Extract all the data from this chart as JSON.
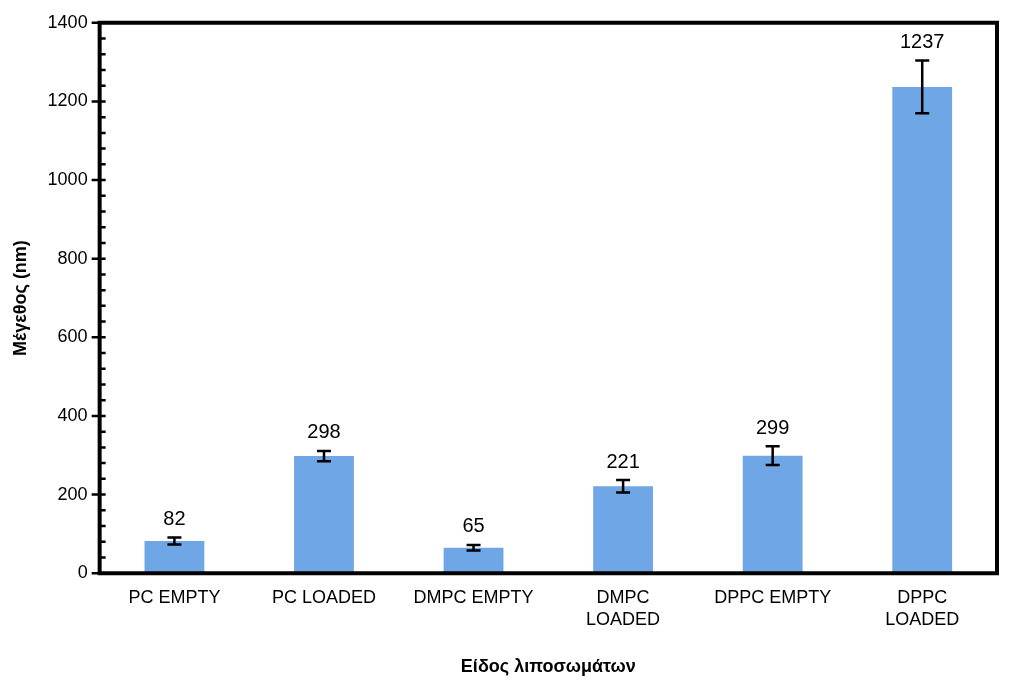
{
  "chart_data": {
    "type": "bar",
    "xlabel": "Είδος λιποσωμάτων",
    "ylabel": "Μέγεθος (nm)",
    "categories": [
      "PC EMPTY",
      "PC LOADED",
      "DMPC EMPTY",
      "DMPC LOADED",
      "DPPC EMPTY",
      "DPPC LOADED"
    ],
    "values": [
      82,
      298,
      65,
      221,
      299,
      1237
    ],
    "errors": [
      9,
      13,
      7,
      16,
      24,
      67
    ],
    "color": "#6fa6e6",
    "ylim": [
      0,
      1400
    ],
    "yticks": [
      0,
      {
        "value": 40,
        "label": null
      },
      {
        "value": 80,
        "label": null
      },
      {
        "value": 120,
        "label": null
      },
      {
        "value": 160,
        "label": null
      },
      200,
      {
        "value": 240,
        "label": null
      },
      {
        "value": 280,
        "label": null
      },
      {
        "value": 320,
        "label": null
      },
      {
        "value": 360,
        "label": null
      },
      400,
      {
        "value": 440,
        "label": null
      },
      {
        "value": 480,
        "label": null
      },
      {
        "value": 520,
        "label": null
      },
      {
        "value": 560,
        "label": null
      },
      600,
      {
        "value": 640,
        "label": null
      },
      {
        "value": 680,
        "label": null
      },
      {
        "value": 720,
        "label": null
      },
      {
        "value": 760,
        "label": null
      },
      800,
      {
        "value": 840,
        "label": null
      },
      {
        "value": 880,
        "label": null
      },
      {
        "value": 920,
        "label": null
      },
      {
        "value": 960,
        "label": null
      },
      1000,
      {
        "value": 1040,
        "label": null
      },
      {
        "value": 1080,
        "label": null
      },
      {
        "value": 1120,
        "label": null
      },
      {
        "value": 1160,
        "label": null
      },
      1200,
      {
        "value": 1240,
        "label": null
      },
      {
        "value": 1280,
        "label": null
      },
      {
        "value": 1320,
        "label": null
      },
      {
        "value": 1360,
        "label": null
      },
      1400
    ],
    "data_labels": true,
    "grid": false,
    "legend": false
  }
}
